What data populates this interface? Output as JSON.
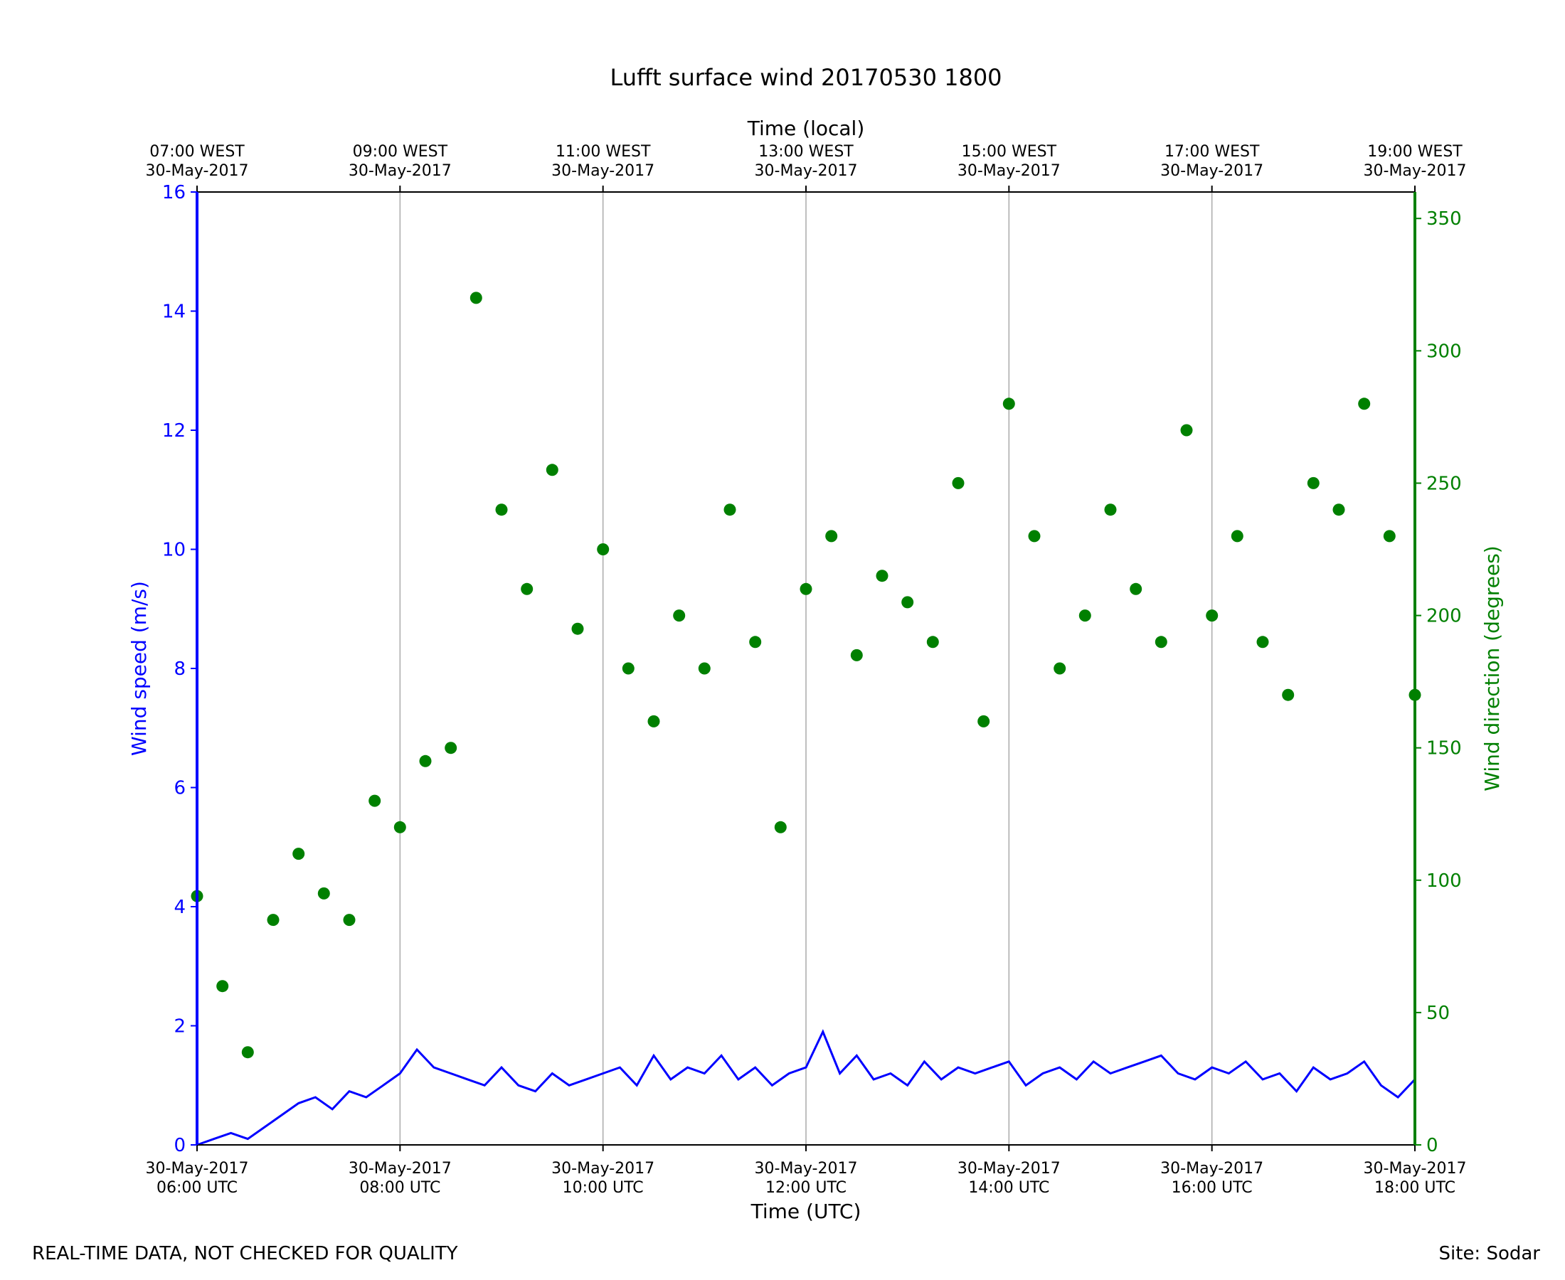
{
  "title": "Lufft surface wind 20170530 1800",
  "footer": {
    "left": "REAL-TIME DATA, NOT CHECKED FOR QUALITY",
    "right": "Site: Sodar"
  },
  "colors": {
    "speed": "#0000ff",
    "direction": "#008000",
    "grid": "#aaaaaa"
  },
  "chart_data": {
    "type": "line",
    "title": "Lufft surface wind 20170530 1800",
    "xlabel": "Time (UTC)",
    "xlabel_top": "Time (local)",
    "ylabel": "Wind speed (m/s)",
    "y2label": "Wind direction (degrees)",
    "xlim": [
      "2017-05-30T06:00Z",
      "2017-05-30T18:00Z"
    ],
    "ylim": [
      0,
      16
    ],
    "y2lim": [
      0,
      360
    ],
    "y_ticks": [
      "0",
      "2",
      "4",
      "6",
      "8",
      "10",
      "12",
      "14",
      "16"
    ],
    "y2_ticks": [
      "0",
      "50",
      "100",
      "150",
      "200",
      "250",
      "300",
      "350"
    ],
    "x_ticks_bottom": [
      {
        "date": "30-May-2017",
        "time": "06:00 UTC"
      },
      {
        "date": "30-May-2017",
        "time": "08:00 UTC"
      },
      {
        "date": "30-May-2017",
        "time": "10:00 UTC"
      },
      {
        "date": "30-May-2017",
        "time": "12:00 UTC"
      },
      {
        "date": "30-May-2017",
        "time": "14:00 UTC"
      },
      {
        "date": "30-May-2017",
        "time": "16:00 UTC"
      },
      {
        "date": "30-May-2017",
        "time": "18:00 UTC"
      }
    ],
    "x_ticks_top": [
      {
        "time": "07:00 WEST",
        "date": "30-May-2017"
      },
      {
        "time": "09:00 WEST",
        "date": "30-May-2017"
      },
      {
        "time": "11:00 WEST",
        "date": "30-May-2017"
      },
      {
        "time": "13:00 WEST",
        "date": "30-May-2017"
      },
      {
        "time": "15:00 WEST",
        "date": "30-May-2017"
      },
      {
        "time": "17:00 WEST",
        "date": "30-May-2017"
      },
      {
        "time": "19:00 WEST",
        "date": "30-May-2017"
      }
    ],
    "grid": "vertical only",
    "series": [
      {
        "name": "Wind speed (m/s)",
        "axis": "left",
        "style": "line",
        "x": [
          "06:00",
          "06:10",
          "06:20",
          "06:30",
          "06:40",
          "06:50",
          "07:00",
          "07:10",
          "07:20",
          "07:30",
          "07:40",
          "07:50",
          "08:00",
          "08:10",
          "08:20",
          "08:30",
          "08:40",
          "08:50",
          "09:00",
          "09:10",
          "09:20",
          "09:30",
          "09:40",
          "09:50",
          "10:00",
          "10:10",
          "10:20",
          "10:30",
          "10:40",
          "10:50",
          "11:00",
          "11:10",
          "11:20",
          "11:30",
          "11:40",
          "11:50",
          "12:00",
          "12:10",
          "12:20",
          "12:30",
          "12:40",
          "12:50",
          "13:00",
          "13:10",
          "13:20",
          "13:30",
          "13:40",
          "13:50",
          "14:00",
          "14:10",
          "14:20",
          "14:30",
          "14:40",
          "14:50",
          "15:00",
          "15:10",
          "15:20",
          "15:30",
          "15:40",
          "15:50",
          "16:00",
          "16:10",
          "16:20",
          "16:30",
          "16:40",
          "16:50",
          "17:00",
          "17:10",
          "17:20",
          "17:30",
          "17:40",
          "17:50",
          "18:00"
        ],
        "values": [
          0.0,
          0.1,
          0.2,
          0.1,
          0.3,
          0.5,
          0.7,
          0.8,
          0.6,
          0.9,
          0.8,
          1.0,
          1.2,
          1.6,
          1.3,
          1.2,
          1.1,
          1.0,
          1.3,
          1.0,
          0.9,
          1.2,
          1.0,
          1.1,
          1.2,
          1.3,
          1.0,
          1.5,
          1.1,
          1.3,
          1.2,
          1.5,
          1.1,
          1.3,
          1.0,
          1.2,
          1.3,
          1.9,
          1.2,
          1.5,
          1.1,
          1.2,
          1.0,
          1.4,
          1.1,
          1.3,
          1.2,
          1.3,
          1.4,
          1.0,
          1.2,
          1.3,
          1.1,
          1.4,
          1.2,
          1.3,
          1.4,
          1.5,
          1.2,
          1.1,
          1.3,
          1.2,
          1.4,
          1.1,
          1.2,
          0.9,
          1.3,
          1.1,
          1.2,
          1.4,
          1.0,
          0.8,
          1.1
        ]
      },
      {
        "name": "Wind direction (degrees)",
        "axis": "right",
        "style": "markers",
        "x": [
          "06:00",
          "06:15",
          "06:30",
          "06:45",
          "07:00",
          "07:15",
          "07:30",
          "07:45",
          "08:00",
          "08:15",
          "08:30",
          "08:45",
          "09:00",
          "09:15",
          "09:30",
          "09:45",
          "10:00",
          "10:15",
          "10:30",
          "10:45",
          "11:00",
          "11:15",
          "11:30",
          "11:45",
          "12:00",
          "12:15",
          "12:30",
          "12:45",
          "13:00",
          "13:15",
          "13:30",
          "13:45",
          "14:00",
          "14:15",
          "14:30",
          "14:45",
          "15:00",
          "15:15",
          "15:30",
          "15:45",
          "16:00",
          "16:15",
          "16:30",
          "16:45",
          "17:00",
          "17:15",
          "17:30",
          "17:45",
          "18:00"
        ],
        "values": [
          94,
          60,
          35,
          85,
          110,
          95,
          85,
          130,
          120,
          145,
          150,
          320,
          240,
          210,
          255,
          195,
          225,
          180,
          160,
          200,
          180,
          240,
          190,
          120,
          210,
          230,
          185,
          215,
          205,
          190,
          250,
          160,
          280,
          230,
          180,
          200,
          240,
          210,
          190,
          270,
          200,
          230,
          190,
          170,
          250,
          240,
          280,
          230,
          170
        ]
      }
    ]
  }
}
